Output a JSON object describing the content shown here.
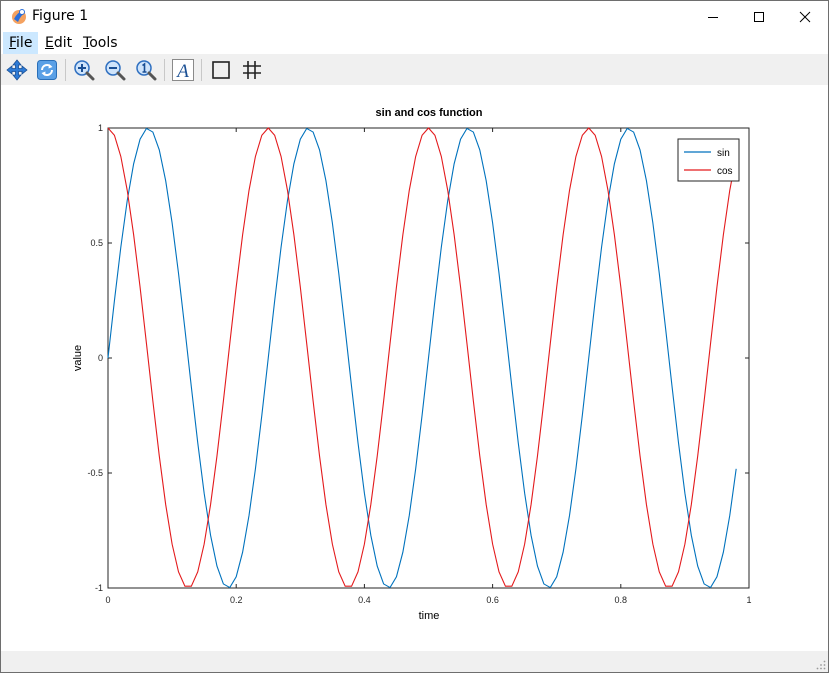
{
  "window": {
    "title": "Figure 1",
    "controls": {
      "minimize_icon": "minimize-icon",
      "maximize_icon": "maximize-icon",
      "close_icon": "close-icon"
    }
  },
  "menu": {
    "items": [
      {
        "label": "File",
        "underline": "F",
        "rest": "ile"
      },
      {
        "label": "Edit",
        "underline": "E",
        "rest": "dit"
      },
      {
        "label": "Tools",
        "underline": "T",
        "rest": "ools"
      }
    ]
  },
  "toolbar": {
    "tools": [
      "pan-icon",
      "rotate-icon",
      "zoom-in-icon",
      "zoom-out-icon",
      "zoom-reset-icon",
      "insert-text-icon",
      "toggle-axes-box-icon",
      "toggle-grid-icon"
    ]
  },
  "colors": {
    "sin": "#0072bd",
    "cos": "#e31a1c",
    "toolbar_bg": "#f0f0f0"
  },
  "chart_data": {
    "type": "line",
    "title": "sin and cos function",
    "xlabel": "time",
    "ylabel": "value",
    "xlim": [
      0,
      1
    ],
    "ylim": [
      -1,
      1
    ],
    "xticks": [
      0,
      0.2,
      0.4,
      0.6,
      0.8,
      1
    ],
    "xtick_labels": [
      "0",
      "0.2",
      "0.4",
      "0.6",
      "0.8",
      "1"
    ],
    "yticks": [
      -1,
      -0.5,
      0,
      0.5,
      1
    ],
    "ytick_labels": [
      "-1",
      "-0.5",
      "0",
      "0.5",
      "1"
    ],
    "grid": false,
    "legend_position": "top-right",
    "series": [
      {
        "name": "sin",
        "function": "sin(2*pi*4*t)",
        "x_start": 0,
        "x_end": 0.98,
        "x_step": 0.01,
        "color": "#0072bd"
      },
      {
        "name": "cos",
        "function": "cos(2*pi*4*t)",
        "x_start": 0,
        "x_end": 0.98,
        "x_step": 0.01,
        "color": "#e31a1c"
      }
    ]
  }
}
